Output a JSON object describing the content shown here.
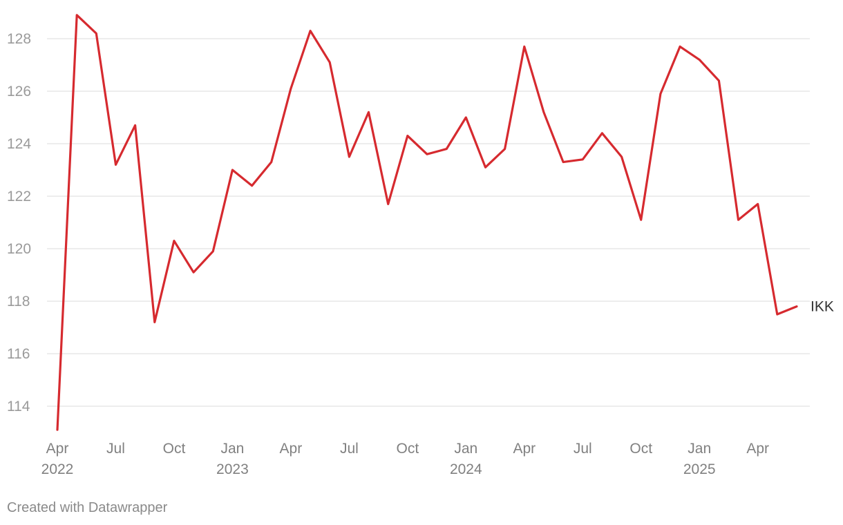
{
  "chart_data": {
    "type": "line",
    "x": [
      "2022-04",
      "2022-05",
      "2022-06",
      "2022-07",
      "2022-08",
      "2022-09",
      "2022-10",
      "2022-11",
      "2022-12",
      "2023-01",
      "2023-02",
      "2023-03",
      "2023-04",
      "2023-05",
      "2023-06",
      "2023-07",
      "2023-08",
      "2023-09",
      "2023-10",
      "2023-11",
      "2023-12",
      "2024-01",
      "2024-02",
      "2024-03",
      "2024-04",
      "2024-05",
      "2024-06",
      "2024-07",
      "2024-08",
      "2024-09",
      "2024-10",
      "2024-11",
      "2024-12",
      "2025-01",
      "2025-02",
      "2025-03",
      "2025-04",
      "2025-05",
      "2025-06"
    ],
    "series": [
      {
        "name": "IKK",
        "color": "#d62a2f",
        "values": [
          113.1,
          128.9,
          128.2,
          123.2,
          124.7,
          117.2,
          120.3,
          119.1,
          119.9,
          123.0,
          122.4,
          123.3,
          126.1,
          128.3,
          127.1,
          123.5,
          125.2,
          121.7,
          124.3,
          123.6,
          123.8,
          125.0,
          123.1,
          123.8,
          127.7,
          125.2,
          123.3,
          123.4,
          124.4,
          123.5,
          121.1,
          125.9,
          127.7,
          127.2,
          126.4,
          121.1,
          121.7,
          117.5,
          117.8
        ]
      }
    ],
    "ylim": [
      113,
      129
    ],
    "yticks": [
      114,
      116,
      118,
      120,
      122,
      124,
      126,
      128
    ],
    "xtick_labels": [
      {
        "month": "Apr",
        "year": "2022",
        "at": "2022-04"
      },
      {
        "month": "Jul",
        "year": "",
        "at": "2022-07"
      },
      {
        "month": "Oct",
        "year": "",
        "at": "2022-10"
      },
      {
        "month": "Jan",
        "year": "2023",
        "at": "2023-01"
      },
      {
        "month": "Apr",
        "year": "",
        "at": "2023-04"
      },
      {
        "month": "Jul",
        "year": "",
        "at": "2023-07"
      },
      {
        "month": "Oct",
        "year": "",
        "at": "2023-10"
      },
      {
        "month": "Jan",
        "year": "2024",
        "at": "2024-01"
      },
      {
        "month": "Apr",
        "year": "",
        "at": "2024-04"
      },
      {
        "month": "Jul",
        "year": "",
        "at": "2024-07"
      },
      {
        "month": "Oct",
        "year": "",
        "at": "2024-10"
      },
      {
        "month": "Jan",
        "year": "2025",
        "at": "2025-01"
      },
      {
        "month": "Apr",
        "year": "",
        "at": "2025-04"
      }
    ],
    "grid": true,
    "legend": "direct label at line end"
  },
  "footer": {
    "credit": "Created with Datawrapper"
  }
}
